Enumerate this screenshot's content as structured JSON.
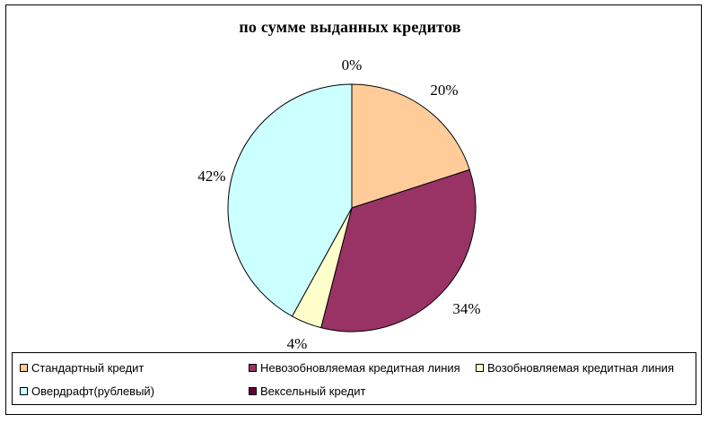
{
  "chart_data": {
    "type": "pie",
    "title": "по сумме выданных кредитов",
    "categories": [
      "Стандартный кредит",
      "Невозобновляемая кредитная линия",
      "Возобновляемая кредитная линия",
      "Овердрафт(рублевый)",
      "Вексельный кредит"
    ],
    "values": [
      20,
      34,
      4,
      42,
      0
    ],
    "value_labels": [
      "20%",
      "34%",
      "4%",
      "42%",
      "0%"
    ],
    "colors": [
      "#FFCC99",
      "#993366",
      "#FFFFCC",
      "#CCFFFF",
      "#660033"
    ],
    "legend_position": "bottom"
  }
}
